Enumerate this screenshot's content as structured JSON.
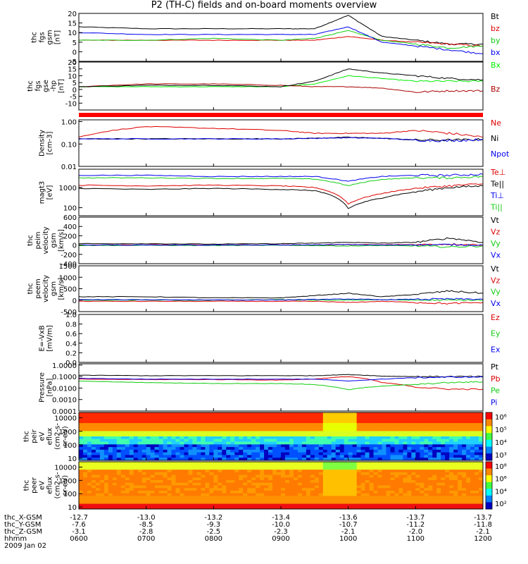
{
  "title": "P2 (TH-C) fields and on-board moments overview",
  "date_label": "2009 Jan 02",
  "time_axis": {
    "row_labels": [
      "thc_X-GSM",
      "thc_Y-GSM",
      "thc_Z-GSM",
      "hhmm"
    ],
    "ticks": [
      {
        "hhmm": "0600",
        "x": "-12.7",
        "y": "-7.6",
        "z": "-3.1"
      },
      {
        "hhmm": "0700",
        "x": "-13.0",
        "y": "-8.5",
        "z": "-2.8"
      },
      {
        "hhmm": "0800",
        "x": "-13.2",
        "y": "-9.3",
        "z": "-2.5"
      },
      {
        "hhmm": "0900",
        "x": "-13.4",
        "y": "-10.0",
        "z": "-2.3"
      },
      {
        "hhmm": "1000",
        "x": "-13.6",
        "y": "-10.7",
        "z": "-2.1"
      },
      {
        "hhmm": "1100",
        "x": "-13.7",
        "y": "-11.2",
        "z": "-2.0"
      },
      {
        "hhmm": "1200",
        "x": "-13.7",
        "y": "-11.8",
        "z": "-2.1"
      }
    ]
  },
  "colors": {
    "black": "#000000",
    "red": "#dd0000",
    "green": "#11cc11",
    "blue": "#0000ee",
    "lime": "#00ee00",
    "darkred": "#aa0000"
  },
  "chart_data": [
    {
      "id": "fgs-gsm",
      "type": "line",
      "ylabel": [
        "thc",
        "fgs",
        "gsm",
        "[nT]"
      ],
      "ylim": [
        -5,
        20
      ],
      "yscale": "linear",
      "ticks": [
        "20",
        "15",
        "10",
        "5",
        "0",
        "-5"
      ],
      "tick_values": [
        20,
        15,
        10,
        5,
        0,
        -5
      ],
      "x": [
        "0600",
        "0700",
        "0800",
        "0900",
        "0930",
        "1000",
        "1030",
        "1100",
        "1130",
        "1200"
      ],
      "series": [
        {
          "name": "Bt",
          "color": "#000000",
          "values": [
            13,
            12,
            12,
            12,
            12,
            19,
            8,
            6,
            4,
            4
          ]
        },
        {
          "name": "bz",
          "color": "#dd0000",
          "values": [
            6,
            6,
            6,
            6,
            6,
            8,
            6,
            5,
            4,
            3
          ]
        },
        {
          "name": "by",
          "color": "#11cc11",
          "values": [
            6,
            6,
            7,
            6,
            7,
            11,
            6,
            4,
            2,
            3
          ]
        },
        {
          "name": "bx",
          "color": "#0000ee",
          "values": [
            10,
            9,
            9,
            9,
            9,
            13,
            5,
            3,
            1,
            -1
          ]
        }
      ]
    },
    {
      "id": "fgs-gse-high",
      "type": "line",
      "ylabel": [
        "thc",
        "fgs",
        "gse",
        "-hp",
        "[nT]"
      ],
      "ylim": [
        -15,
        20
      ],
      "yscale": "linear",
      "ticks": [
        "20",
        "15",
        "10",
        "5",
        "0",
        "-5",
        "-10"
      ],
      "tick_values": [
        20,
        15,
        10,
        5,
        0,
        -5,
        -10
      ],
      "x": [
        "0600",
        "0700",
        "0800",
        "0900",
        "0930",
        "1000",
        "1030",
        "1100",
        "1130",
        "1200"
      ],
      "series": [
        {
          "name": "Bx",
          "color": "#00ee00",
          "values": [
            2,
            2,
            2,
            2,
            4,
            10,
            8,
            6,
            6,
            6
          ]
        },
        {
          "name": "Bz",
          "color": "#aa0000",
          "values": [
            2,
            4,
            4,
            3,
            2,
            2,
            1,
            -2,
            -1,
            -1
          ]
        },
        {
          "name": "",
          "color": "#000000",
          "values": [
            2,
            3,
            3,
            2,
            6,
            15,
            12,
            10,
            8,
            7
          ]
        }
      ]
    },
    {
      "id": "density",
      "type": "line",
      "ylabel": [
        "Density",
        "[cm-3]"
      ],
      "ylim": [
        0.01,
        1.2
      ],
      "yscale": "log",
      "ticks": [
        "1.00",
        "0.10",
        "0.01"
      ],
      "tick_values": [
        1.0,
        0.1,
        0.01
      ],
      "x": [
        "0600",
        "0700",
        "0800",
        "0900",
        "0930",
        "1000",
        "1030",
        "1100",
        "1130",
        "1200"
      ],
      "series": [
        {
          "name": "Ne",
          "color": "#dd0000",
          "values": [
            0.2,
            0.6,
            0.5,
            0.4,
            0.3,
            0.3,
            0.3,
            0.4,
            0.3,
            0.2
          ]
        },
        {
          "name": "Ni",
          "color": "#000000",
          "values": [
            0.17,
            0.17,
            0.17,
            0.17,
            0.18,
            0.2,
            0.18,
            0.15,
            0.15,
            0.16
          ]
        },
        {
          "name": "Npot",
          "color": "#0000ee",
          "values": [
            0.17,
            0.17,
            0.17,
            0.17,
            0.18,
            0.19,
            0.18,
            0.15,
            0.14,
            0.16
          ]
        }
      ]
    },
    {
      "id": "temperature",
      "type": "line",
      "ylabel": [
        "magt3",
        "[eV]"
      ],
      "ylim": [
        40,
        8000
      ],
      "yscale": "log",
      "ticks": [
        "1000",
        "100"
      ],
      "tick_values": [
        1000,
        100
      ],
      "x": [
        "0600",
        "0700",
        "0800",
        "0900",
        "0930",
        "1000",
        "1030",
        "1100",
        "1130",
        "1200"
      ],
      "series": [
        {
          "name": "Te⊥",
          "color": "#dd0000",
          "values": [
            1300,
            1200,
            1300,
            1200,
            1000,
            150,
            500,
            900,
            1200,
            1500
          ]
        },
        {
          "name": "Te||",
          "color": "#000000",
          "values": [
            900,
            800,
            900,
            800,
            700,
            90,
            300,
            600,
            1000,
            1200
          ]
        },
        {
          "name": "Ti⊥",
          "color": "#0000ee",
          "values": [
            4000,
            4000,
            3500,
            3500,
            3500,
            2000,
            3500,
            4000,
            4000,
            4500
          ]
        },
        {
          "name": "Ti||",
          "color": "#11cc11",
          "values": [
            3000,
            3000,
            2800,
            2800,
            2600,
            1200,
            2500,
            3000,
            3000,
            3500
          ]
        }
      ]
    },
    {
      "id": "peim-velocity",
      "type": "line",
      "ylabel": [
        "thc",
        "peim",
        "velocity",
        "gsm",
        "[km/s]"
      ],
      "ylim": [
        -400,
        600
      ],
      "yscale": "linear",
      "ticks": [
        "600",
        "400",
        "200",
        "0",
        "-200",
        "-400"
      ],
      "tick_values": [
        600,
        400,
        200,
        0,
        -200,
        -400
      ],
      "x": [
        "0600",
        "0700",
        "0800",
        "0900",
        "0930",
        "1000",
        "1030",
        "1100",
        "1130",
        "1200"
      ],
      "series": [
        {
          "name": "Vt",
          "color": "#000000",
          "values": [
            30,
            30,
            20,
            30,
            40,
            60,
            40,
            60,
            150,
            60
          ]
        },
        {
          "name": "Vz",
          "color": "#dd0000",
          "values": [
            0,
            5,
            0,
            5,
            0,
            10,
            5,
            10,
            20,
            5
          ]
        },
        {
          "name": "Vy",
          "color": "#11cc11",
          "values": [
            -10,
            -5,
            -10,
            -5,
            -10,
            -20,
            -10,
            -20,
            -40,
            -20
          ]
        },
        {
          "name": "Vx",
          "color": "#0000ee",
          "values": [
            0,
            0,
            0,
            0,
            5,
            10,
            0,
            5,
            10,
            0
          ]
        }
      ]
    },
    {
      "id": "peem-velocity",
      "type": "line",
      "ylabel": [
        "thc",
        "peem",
        "velocity",
        "gsm",
        "[km/s]"
      ],
      "ylim": [
        -500,
        1500
      ],
      "yscale": "linear",
      "ticks": [
        "1500",
        "1000",
        "500",
        "0",
        "-500"
      ],
      "tick_values": [
        1500,
        1000,
        500,
        0,
        -500
      ],
      "x": [
        "0600",
        "0700",
        "0800",
        "0900",
        "0930",
        "1000",
        "1030",
        "1100",
        "1130",
        "1200"
      ],
      "series": [
        {
          "name": "Vt",
          "color": "#000000",
          "values": [
            150,
            150,
            100,
            100,
            200,
            300,
            150,
            250,
            400,
            300
          ]
        },
        {
          "name": "Vz",
          "color": "#dd0000",
          "values": [
            -50,
            -50,
            -50,
            -50,
            -50,
            -100,
            -50,
            -100,
            -150,
            -100
          ]
        },
        {
          "name": "Vy",
          "color": "#11cc11",
          "values": [
            0,
            0,
            0,
            20,
            0,
            0,
            20,
            0,
            0,
            0
          ]
        },
        {
          "name": "Vx",
          "color": "#0000ee",
          "values": [
            20,
            20,
            10,
            10,
            30,
            50,
            20,
            40,
            50,
            40
          ]
        }
      ]
    },
    {
      "id": "efield",
      "type": "line",
      "ylabel": [
        "E=-VxB",
        "[mV/m]"
      ],
      "ylim": [
        0,
        1.0
      ],
      "yscale": "linear",
      "ticks": [
        "1.0",
        "0.8",
        "0.6",
        "0.4",
        "0.2",
        "0.0"
      ],
      "tick_values": [
        1.0,
        0.8,
        0.6,
        0.4,
        0.2,
        0.0
      ],
      "x": [],
      "series": [
        {
          "name": "Ez",
          "color": "#dd0000",
          "values": []
        },
        {
          "name": "Ey",
          "color": "#11cc11",
          "values": []
        },
        {
          "name": "Ex",
          "color": "#0000ee",
          "values": []
        }
      ]
    },
    {
      "id": "pressure",
      "type": "line",
      "ylabel": [
        "Pressure",
        "[nPa]"
      ],
      "ylim": [
        0.0001,
        1.3
      ],
      "yscale": "log",
      "ticks": [
        "1.0000",
        "0.1000",
        "0.0100",
        "0.0010",
        "0.0001"
      ],
      "tick_values": [
        1.0,
        0.1,
        0.01,
        0.001,
        0.0001
      ],
      "x": [
        "0600",
        "0700",
        "0800",
        "0900",
        "0930",
        "1000",
        "1030",
        "1100",
        "1130",
        "1200"
      ],
      "series": [
        {
          "name": "Pt",
          "color": "#000000",
          "values": [
            0.13,
            0.12,
            0.12,
            0.12,
            0.12,
            0.15,
            0.11,
            0.1,
            0.1,
            0.1
          ]
        },
        {
          "name": "Pb",
          "color": "#dd0000",
          "values": [
            0.06,
            0.055,
            0.055,
            0.05,
            0.06,
            0.1,
            0.03,
            0.012,
            0.008,
            0.008
          ]
        },
        {
          "name": "Pe",
          "color": "#11cc11",
          "values": [
            0.04,
            0.03,
            0.025,
            0.025,
            0.02,
            0.007,
            0.015,
            0.02,
            0.03,
            0.035
          ]
        },
        {
          "name": "Pi",
          "color": "#0000ee",
          "values": [
            0.07,
            0.06,
            0.06,
            0.06,
            0.06,
            0.04,
            0.06,
            0.08,
            0.09,
            0.09
          ]
        }
      ]
    },
    {
      "id": "peir-eflux",
      "type": "heatmap",
      "ylabel": [
        "thc",
        "peir",
        "eV",
        "eflux",
        "(cm2-s-",
        "sr-eV)"
      ],
      "ylim": [
        7,
        25000
      ],
      "yscale": "log",
      "ticks": [
        "10000",
        "1000",
        "100",
        "10"
      ],
      "tick_values": [
        10000,
        1000,
        100,
        10
      ],
      "colorbar": {
        "ticks": [
          "10⁶",
          "10⁵",
          "10⁴",
          "10³"
        ]
      }
    },
    {
      "id": "peer-eflux",
      "type": "heatmap",
      "ylabel": [
        "thc",
        "peer",
        "eV",
        "eflux",
        "(cm2-s-",
        "sr-eV)"
      ],
      "ylim": [
        7,
        25000
      ],
      "yscale": "log",
      "ticks": [
        "10000",
        "1000",
        "100",
        "10"
      ],
      "tick_values": [
        10000,
        1000,
        100,
        10
      ],
      "colorbar": {
        "ticks": [
          "10⁸",
          "10⁶",
          "10⁴",
          "10²"
        ]
      }
    }
  ]
}
